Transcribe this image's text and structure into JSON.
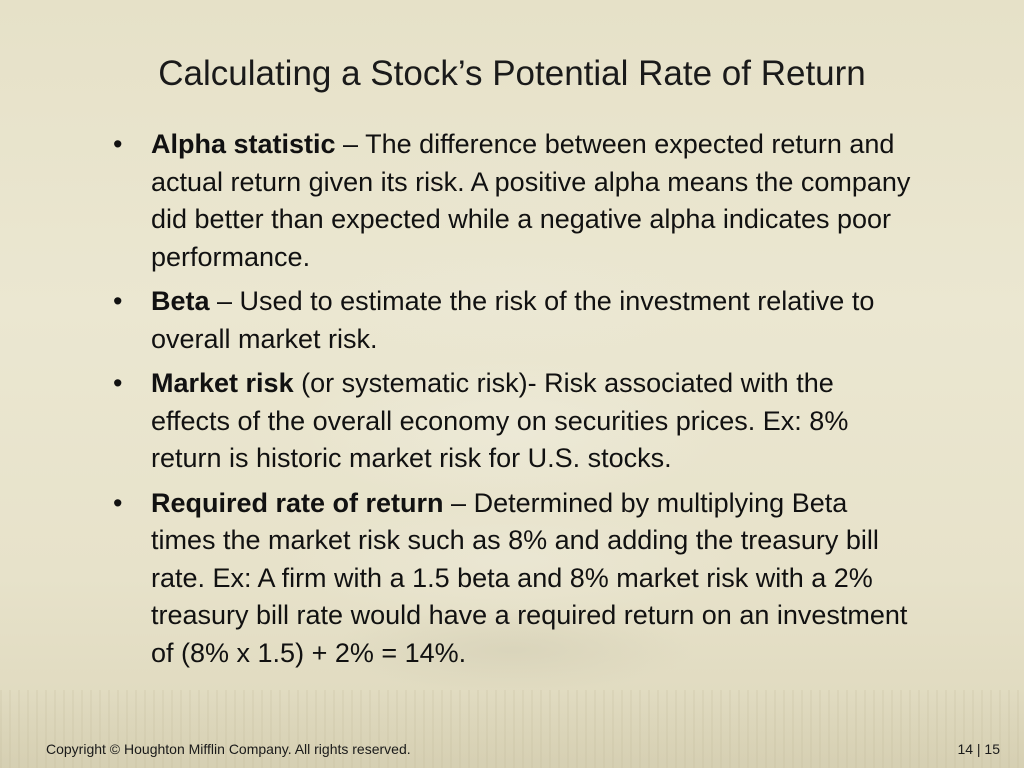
{
  "slide": {
    "title": "Calculating a Stock’s Potential Rate of Return",
    "bullet_marker": "•",
    "bullets": [
      {
        "term": "Alpha statistic",
        "text": " – The difference between expected return and actual return given its risk.  A positive alpha means the company did better than expected while a negative alpha indicates poor performance."
      },
      {
        "term": "Beta",
        "text": " – Used to estimate the risk of the investment relative to overall market risk."
      },
      {
        "term": "Market risk",
        "text": " (or systematic risk)-  Risk associated with the effects of the overall economy on securities prices.  Ex: 8% return is historic market risk for U.S. stocks."
      },
      {
        "term": "Required rate of return",
        "text": " – Determined by multiplying Beta times the market risk such as 8% and adding the treasury bill rate.  Ex:  A firm with a 1.5 beta and 8% market risk with a 2% treasury bill rate would have a required return on an investment of (8% x 1.5) + 2% = 14%."
      }
    ]
  },
  "footer": {
    "copyright": "Copyright © Houghton Mifflin Company. All rights reserved.",
    "page_number": "14 | 15"
  },
  "colors": {
    "background": "#e8e3cb",
    "text": "#111111"
  }
}
